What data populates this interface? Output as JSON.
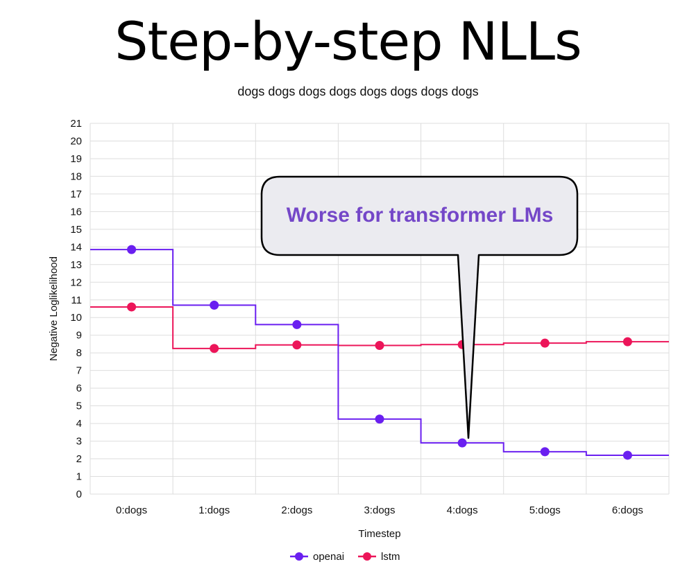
{
  "slide": {
    "title": "Step-by-step NLLs"
  },
  "callout": {
    "text": "Worse for transformer LMs"
  },
  "chart_data": {
    "type": "line",
    "step": true,
    "title": "dogs dogs dogs dogs dogs dogs dogs dogs",
    "xlabel": "Timestep",
    "ylabel": "Negative Loglikelihood",
    "categories": [
      "0:dogs",
      "1:dogs",
      "2:dogs",
      "3:dogs",
      "4:dogs",
      "5:dogs",
      "6:dogs"
    ],
    "ylim": [
      0,
      21
    ],
    "yticks": [
      0,
      1,
      2,
      3,
      4,
      5,
      6,
      7,
      8,
      9,
      10,
      11,
      12,
      13,
      14,
      15,
      16,
      17,
      18,
      19,
      20,
      21
    ],
    "grid": true,
    "legend_position": "bottom",
    "series": [
      {
        "name": "openai",
        "color": "#6a1ff0",
        "values": [
          13.85,
          10.7,
          9.6,
          4.25,
          2.9,
          2.4,
          2.2
        ]
      },
      {
        "name": "lstm",
        "color": "#ec1559",
        "values": [
          10.6,
          8.25,
          8.45,
          8.42,
          8.47,
          8.55,
          8.63
        ]
      }
    ]
  }
}
